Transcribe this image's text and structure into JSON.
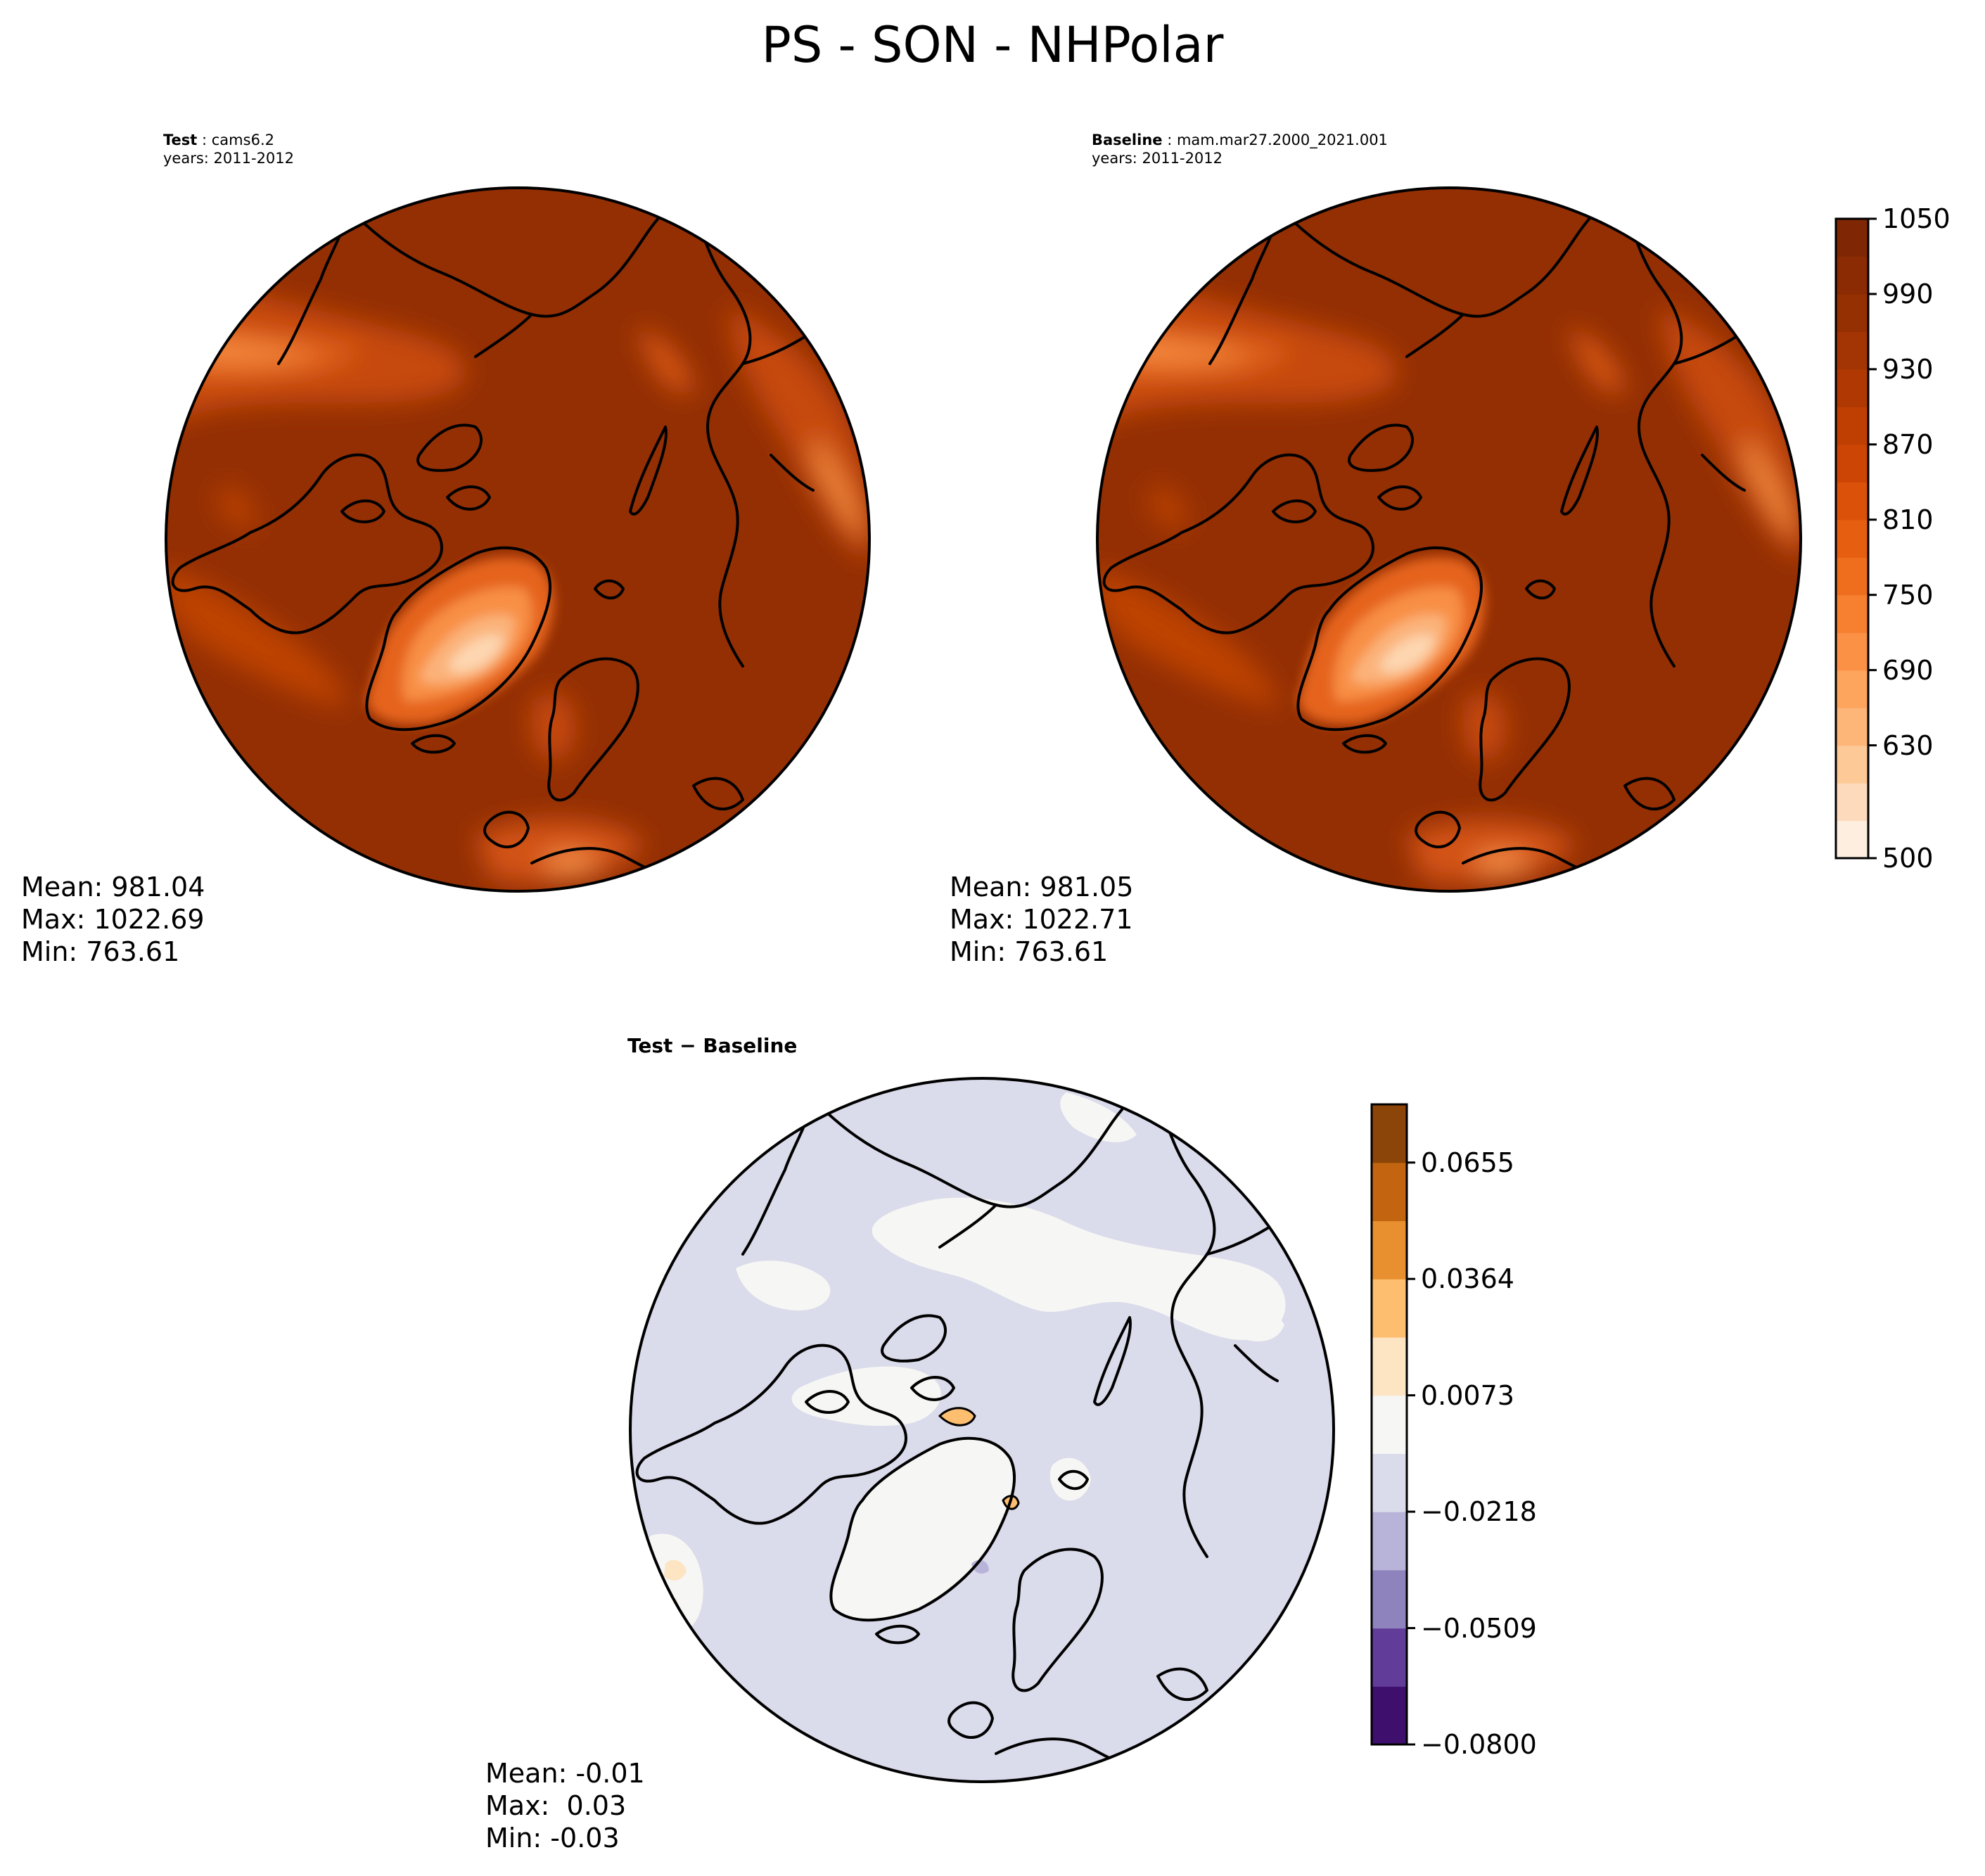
{
  "figure": {
    "title": "PS - SON - NHPolar"
  },
  "panels": [
    {
      "id": "test",
      "label_bold": "Test",
      "label_value": "cams6.2",
      "years": "years: 2011-2012",
      "stats": {
        "mean": "Mean: 981.04",
        "max": "Max: 1022.69",
        "min": "Min: 763.61"
      }
    },
    {
      "id": "baseline",
      "label_bold": "Baseline",
      "label_value": "mam.mar27.2000_2021.001",
      "years": "years: 2011-2012",
      "stats": {
        "mean": "Mean: 981.05",
        "max": "Max: 1022.71",
        "min": "Min: 763.61"
      }
    },
    {
      "id": "difference",
      "label_bold": "Test − Baseline",
      "stats": {
        "mean": "Mean: -0.01",
        "max": "Max:  0.03",
        "min": "Min: -0.03"
      }
    }
  ],
  "colorbars": {
    "main": {
      "ticks": [
        "1050",
        "990",
        "930",
        "870",
        "810",
        "750",
        "690",
        "630",
        "500"
      ],
      "colors": [
        "#fdeee0",
        "#fddabb",
        "#fdc997",
        "#fdb578",
        "#fda45d",
        "#fb9145",
        "#f67f30",
        "#ee6e1e",
        "#e65e10",
        "#db510a",
        "#cc4504",
        "#bf3f03",
        "#b03903",
        "#a23503",
        "#953003",
        "#8a2b03",
        "#7f2704"
      ]
    },
    "diff": {
      "ticks": [
        "0.0655",
        "0.0364",
        "0.0073",
        "−0.0218",
        "−0.0509",
        "−0.0800"
      ],
      "colors": [
        "#3f0f6e",
        "#613c99",
        "#8e83bc",
        "#b8b4d9",
        "#dadbeb",
        "#f6f6f4",
        "#fde4c2",
        "#fdbe6f",
        "#e8902f",
        "#c36510",
        "#8c4508"
      ]
    }
  },
  "chart_data": {
    "type": "heatmap",
    "title": "PS - SON - NHPolar",
    "projection": "north-polar-stereographic",
    "maps": [
      {
        "name": "Test: cams6.2",
        "years": "2011-2012",
        "mean": 981.04,
        "max": 1022.69,
        "min": 763.61,
        "colorbar_range": [
          500,
          1050
        ]
      },
      {
        "name": "Baseline: mam.mar27.2000_2021.001",
        "years": "2011-2012",
        "mean": 981.05,
        "max": 1022.71,
        "min": 763.61,
        "colorbar_range": [
          500,
          1050
        ]
      },
      {
        "name": "Test − Baseline",
        "mean": -0.01,
        "max": 0.03,
        "min": -0.03,
        "colorbar_range": [
          -0.08,
          0.08
        ]
      }
    ],
    "colorbar_main_ticks": [
      500,
      630,
      690,
      750,
      810,
      870,
      930,
      990,
      1050
    ],
    "colorbar_diff_ticks": [
      -0.08,
      -0.0509,
      -0.0218,
      0.0073,
      0.0364,
      0.0655
    ]
  }
}
